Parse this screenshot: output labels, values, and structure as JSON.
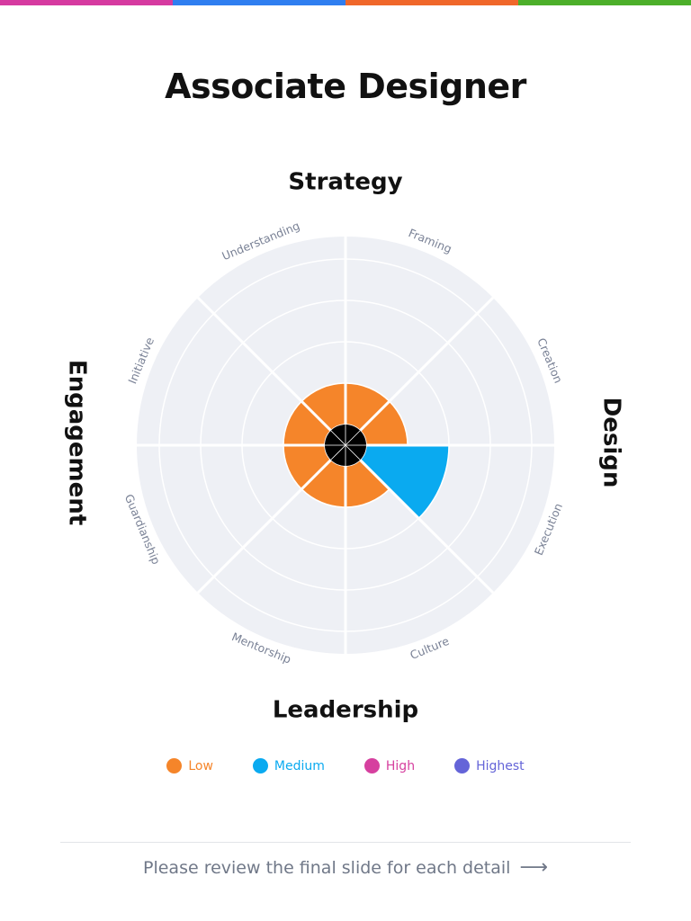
{
  "top_bar_colors": [
    "#d63aa0",
    "#2f7ef0",
    "#f0672a",
    "#4caf2a"
  ],
  "title": "Associate Designer",
  "chart_data": {
    "type": "polar-area",
    "quadrants": [
      "Strategy",
      "Design",
      "Leadership",
      "Engagement"
    ],
    "categories": [
      "Framing",
      "Creation",
      "Execution",
      "Culture",
      "Mentorship",
      "Guardianship",
      "Initiative",
      "Understanding"
    ],
    "values": [
      1,
      1,
      2,
      1,
      1,
      1,
      1,
      1
    ],
    "levels": [
      "Low",
      "Low",
      "Medium",
      "Low",
      "Low",
      "Low",
      "Low",
      "Low"
    ],
    "max_level": 4,
    "level_colors": {
      "Low": "#f5852a",
      "Medium": "#0aaaf0",
      "High": "#d6409f",
      "Highest": "#6464d8"
    }
  },
  "legend": [
    {
      "label": "Low",
      "color": "#f5852a"
    },
    {
      "label": "Medium",
      "color": "#0aaaf0"
    },
    {
      "label": "High",
      "color": "#d6409f"
    },
    {
      "label": "Highest",
      "color": "#6464d8"
    }
  ],
  "footer": {
    "text": "Please review the final slide for each detail",
    "arrow_icon": "arrow-right-icon"
  }
}
